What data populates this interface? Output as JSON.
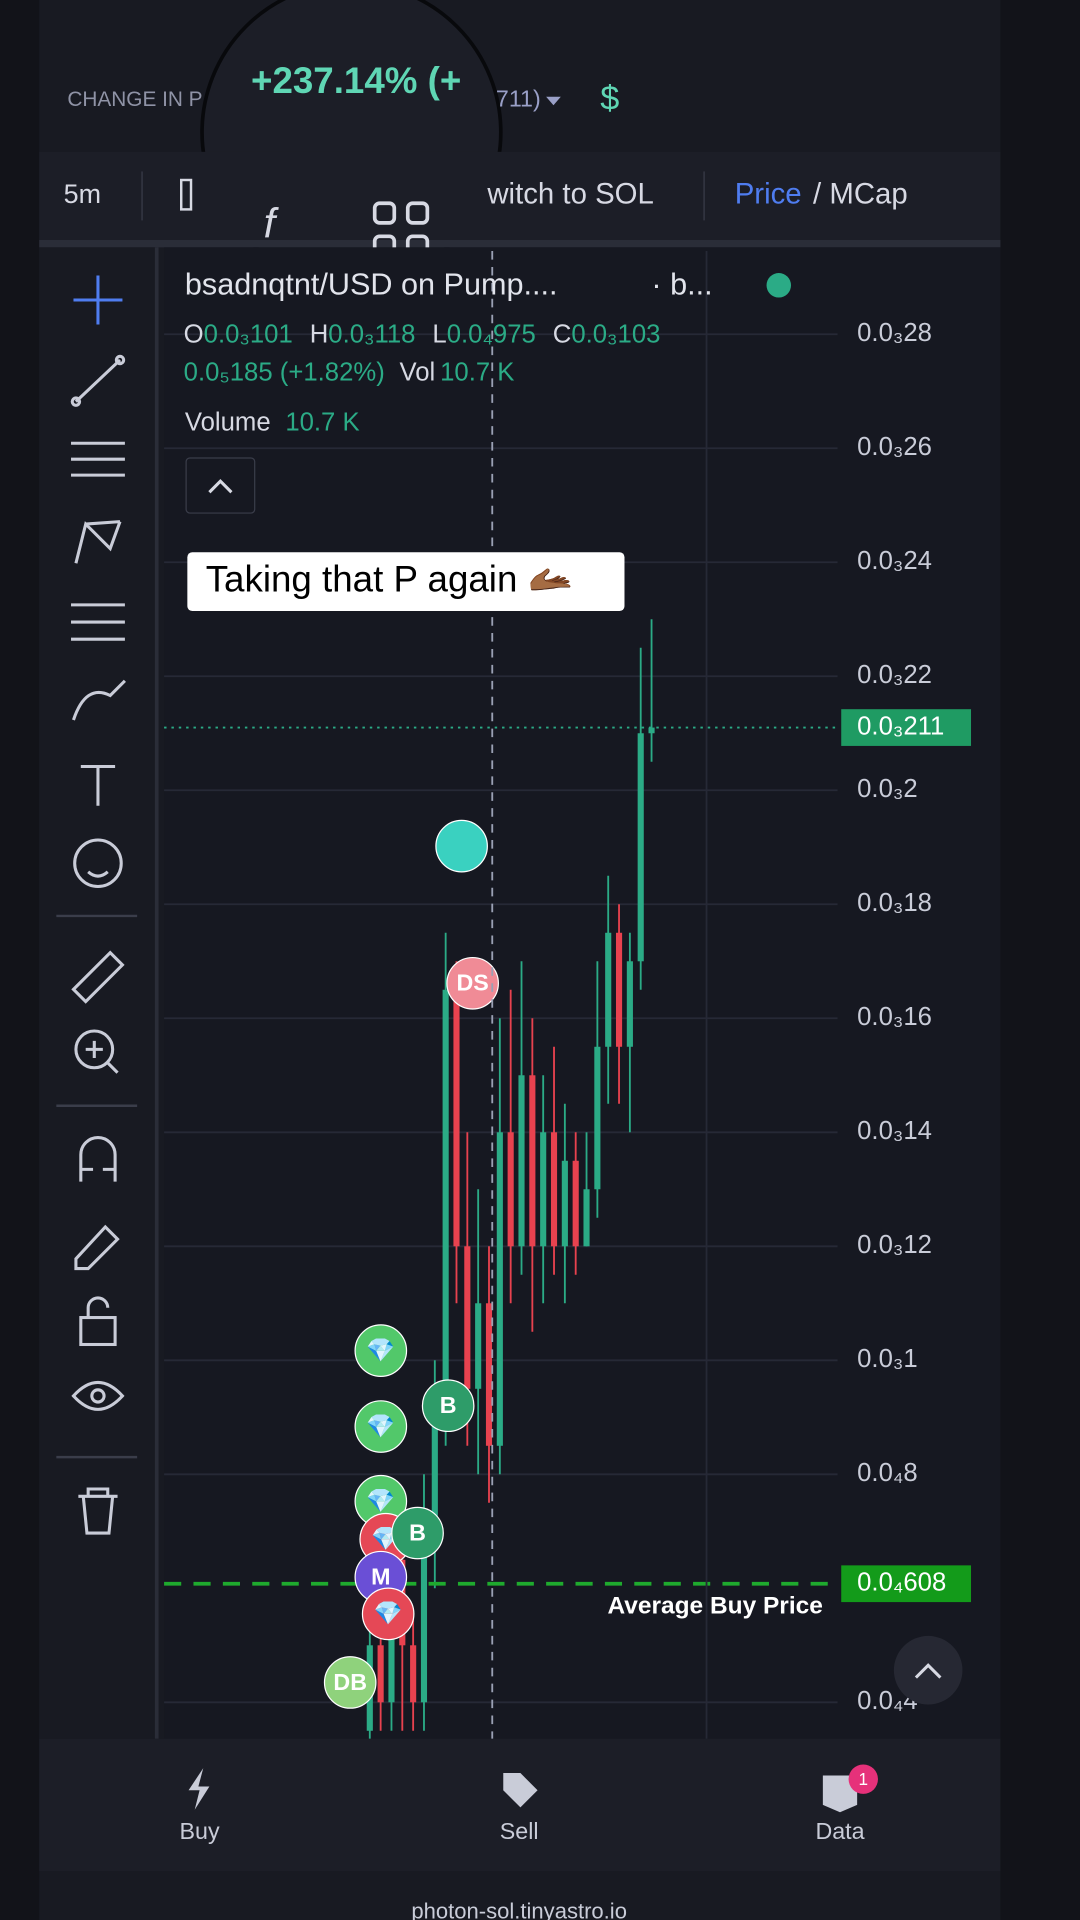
{
  "header": {
    "label": "CHANGE IN P",
    "change": "+237.14% (+",
    "change_tail": "711)"
  },
  "toolbar": {
    "interval": "5m",
    "switch": "witch to SOL",
    "price": "Price",
    "mcap": "/ MCap"
  },
  "legend": {
    "symbol": "bsadnqtnt/USD on Pump....",
    "source": "· b...",
    "o_label": "O",
    "o": "0.0₃101",
    "h_label": "H",
    "h": "0.0₃118",
    "l_label": "L",
    "l": "0.0₄975",
    "c_label": "C",
    "c": "0.0₃103",
    "change": "0.0₅185 (+1.82%)",
    "vol_label": "Vol",
    "vol": "10.7 K",
    "volume_label": "Volume",
    "volume": "10.7 K"
  },
  "caption": "Taking that P again 🫴🏾",
  "chart_data": {
    "type": "candlestick",
    "ylim": [
      3.36e-05,
      0.0002946
    ],
    "yticks": [
      {
        "value": 0.00028,
        "label": "0.0₃28"
      },
      {
        "value": 0.00026,
        "label": "0.0₃26"
      },
      {
        "value": 0.00024,
        "label": "0.0₃24"
      },
      {
        "value": 0.00022,
        "label": "0.0₃22"
      },
      {
        "value": 0.0002,
        "label": "0.0₃2"
      },
      {
        "value": 0.00018,
        "label": "0.0₃18"
      },
      {
        "value": 0.00016,
        "label": "0.0₃16"
      },
      {
        "value": 0.00014,
        "label": "0.0₃14"
      },
      {
        "value": 0.00012,
        "label": "0.0₃12"
      },
      {
        "value": 0.0001,
        "label": "0.0₃1"
      },
      {
        "value": 8e-05,
        "label": "0.0₄8"
      },
      {
        "value": 4e-05,
        "label": "0.0₄4"
      }
    ],
    "current_price": {
      "value": 0.000211,
      "label": "0.0₃211"
    },
    "average_buy": {
      "value": 6.08e-05,
      "label": "0.0₄608"
    },
    "average_buy_text": "Average Buy Price",
    "up_color": "#2bab86",
    "down_color": "#e8424f",
    "open": [
      3.5e-05,
      5e-05,
      4e-05,
      6.5e-05,
      5e-05,
      4e-05,
      7e-05,
      9e-05,
      0.000165,
      0.00012,
      9.5e-05,
      0.00011,
      8.5e-05,
      0.00014,
      0.00012,
      0.00015,
      0.00012,
      0.00014,
      0.00012,
      0.000135,
      0.00012,
      0.00013,
      0.000155,
      0.000175,
      0.000155,
      0.00017,
      0.00021
    ],
    "high": [
      5.5e-05,
      6e-05,
      7e-05,
      7.5e-05,
      5.5e-05,
      8e-05,
      0.0001,
      0.000175,
      0.00017,
      0.00014,
      0.00013,
      0.00012,
      0.00016,
      0.000165,
      0.00017,
      0.00016,
      0.00015,
      0.000155,
      0.000145,
      0.00014,
      0.00014,
      0.00017,
      0.000185,
      0.00018,
      0.000175,
      0.000225,
      0.00023
    ],
    "low": [
      3e-05,
      3.5e-05,
      3.5e-05,
      3.5e-05,
      3.5e-05,
      3.5e-05,
      6e-05,
      8.5e-05,
      0.00011,
      8.5e-05,
      8e-05,
      7.5e-05,
      8e-05,
      0.00011,
      0.000115,
      0.000105,
      0.00011,
      0.000115,
      0.00011,
      0.000115,
      0.00012,
      0.000125,
      0.000145,
      0.000145,
      0.00014,
      0.000165,
      0.000205
    ],
    "close": [
      5e-05,
      4e-05,
      6.5e-05,
      5e-05,
      4e-05,
      7e-05,
      9e-05,
      0.000165,
      0.00012,
      9.5e-05,
      0.00011,
      8.5e-05,
      0.00014,
      0.00012,
      0.00015,
      0.00012,
      0.00014,
      0.00012,
      0.000135,
      0.00012,
      0.00013,
      0.000155,
      0.000175,
      0.000155,
      0.00017,
      0.00021,
      0.000211
    ]
  },
  "markers": [
    {
      "label": "💎"
    },
    {
      "label": "💎"
    },
    {
      "label": "💎"
    },
    {
      "label": "💎"
    },
    {
      "label": "M"
    },
    {
      "label": "💎"
    },
    {
      "label": "B"
    },
    {
      "label": "B"
    },
    {
      "label": "DB"
    },
    {
      "label": "DS"
    }
  ],
  "nav": {
    "buy": "Buy",
    "sell": "Sell",
    "data": "Data",
    "badge": "1"
  },
  "footer": "photon-sol.tinyastro.io"
}
